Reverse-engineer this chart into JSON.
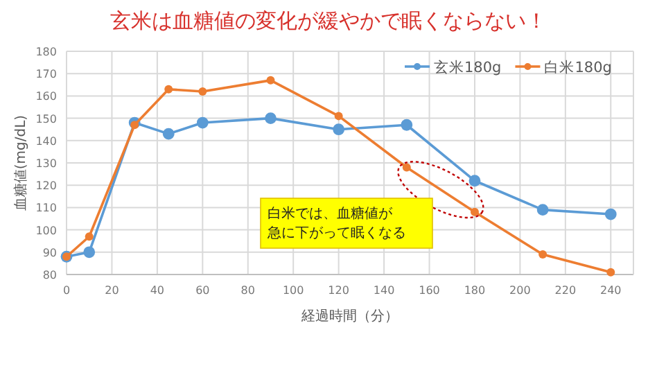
{
  "chart_data": {
    "type": "line",
    "title": "玄米は血糖値の変化が緩やかで眠くならない！",
    "xlabel": "経過時間（分）",
    "ylabel": "血糖値(mg/dL)",
    "x": [
      0,
      10,
      30,
      45,
      60,
      90,
      120,
      150,
      180,
      210,
      240
    ],
    "series": [
      {
        "name": "玄米180g",
        "color": "#5b9bd5",
        "values": [
          88,
          90,
          148,
          143,
          148,
          150,
          145,
          147,
          122,
          109,
          107
        ]
      },
      {
        "name": "白米180g",
        "color": "#ed7d31",
        "values": [
          88,
          97,
          147,
          163,
          162,
          167,
          151,
          128,
          108,
          89,
          81
        ]
      }
    ],
    "xlim": [
      0,
      250
    ],
    "xticks": [
      0,
      20,
      40,
      60,
      80,
      100,
      120,
      140,
      160,
      180,
      200,
      220,
      240
    ],
    "ylim": [
      80,
      180
    ],
    "yticks": [
      80,
      90,
      100,
      110,
      120,
      130,
      140,
      150,
      160,
      170,
      180
    ],
    "grid": true,
    "legend": "top right",
    "marker": "circle",
    "line_style": "solid",
    "annotations": [
      "白米では、血糖値が",
      "急に下がって眠くなる"
    ]
  }
}
